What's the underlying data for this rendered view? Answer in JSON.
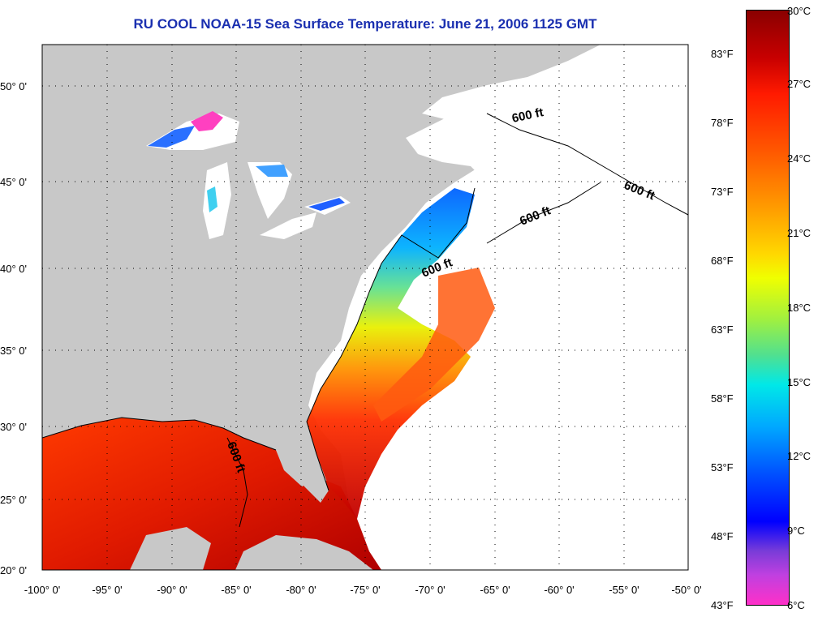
{
  "title": "RU COOL  NOAA-15  Sea Surface Temperature:  June 21, 2006 1125 GMT",
  "lat_labels": [
    "50° 0'",
    "45° 0'",
    "40° 0'",
    "35° 0'",
    "30° 0'",
    "25° 0'",
    "20° 0'"
  ],
  "lon_labels": [
    "-100° 0'",
    "-95° 0'",
    "-90° 0'",
    "-85° 0'",
    "-80° 0'",
    "-75° 0'",
    "-70° 0'",
    "-65° 0'",
    "-60° 0'",
    "-55° 0'",
    "-50° 0'"
  ],
  "isobath_labels": [
    "600 ft",
    "600 ft",
    "600 ft",
    "600 ft",
    "600 ft"
  ],
  "colorbar": {
    "fahrenheit": [
      "83°F",
      "78°F",
      "73°F",
      "68°F",
      "63°F",
      "58°F",
      "53°F",
      "48°F",
      "43°F"
    ],
    "celsius": [
      "30°C",
      "27°C",
      "24°C",
      "21°C",
      "18°C",
      "15°C",
      "12°C",
      "9°C",
      "6°C"
    ]
  },
  "colors": {
    "land": "#c8c8c8",
    "no_data": "#ffffff",
    "title": "#1a2fb0",
    "warm": "#e02000",
    "cold": "#0040ff"
  }
}
